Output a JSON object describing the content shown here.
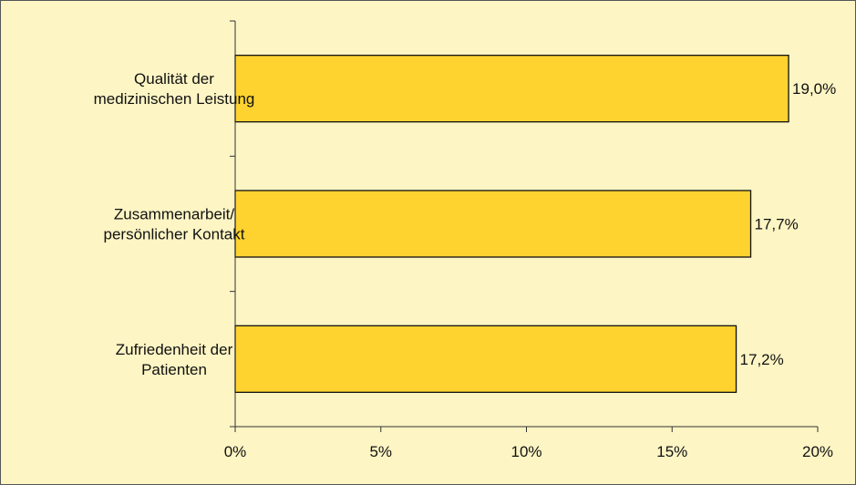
{
  "chart_data": {
    "type": "bar",
    "orientation": "horizontal",
    "categories": [
      [
        "Qualität der",
        "medizinischen Leistung"
      ],
      [
        "Zusammenarbeit/",
        "persönlicher Kontakt"
      ],
      [
        "Zufriedenheit der",
        "Patienten"
      ]
    ],
    "values": [
      19.0,
      17.7,
      17.2
    ],
    "value_labels": [
      "19,0%",
      "17,7%",
      "17,2%"
    ],
    "xlim": [
      0,
      20
    ],
    "xticks": [
      0,
      5,
      10,
      15,
      20
    ],
    "xtick_labels": [
      "0%",
      "5%",
      "10%",
      "15%",
      "20%"
    ],
    "grid": false,
    "colors": {
      "background": "#fdf5c4",
      "bar": "#fed32f",
      "bar_edge": "#111111",
      "axis": "#333333"
    }
  }
}
